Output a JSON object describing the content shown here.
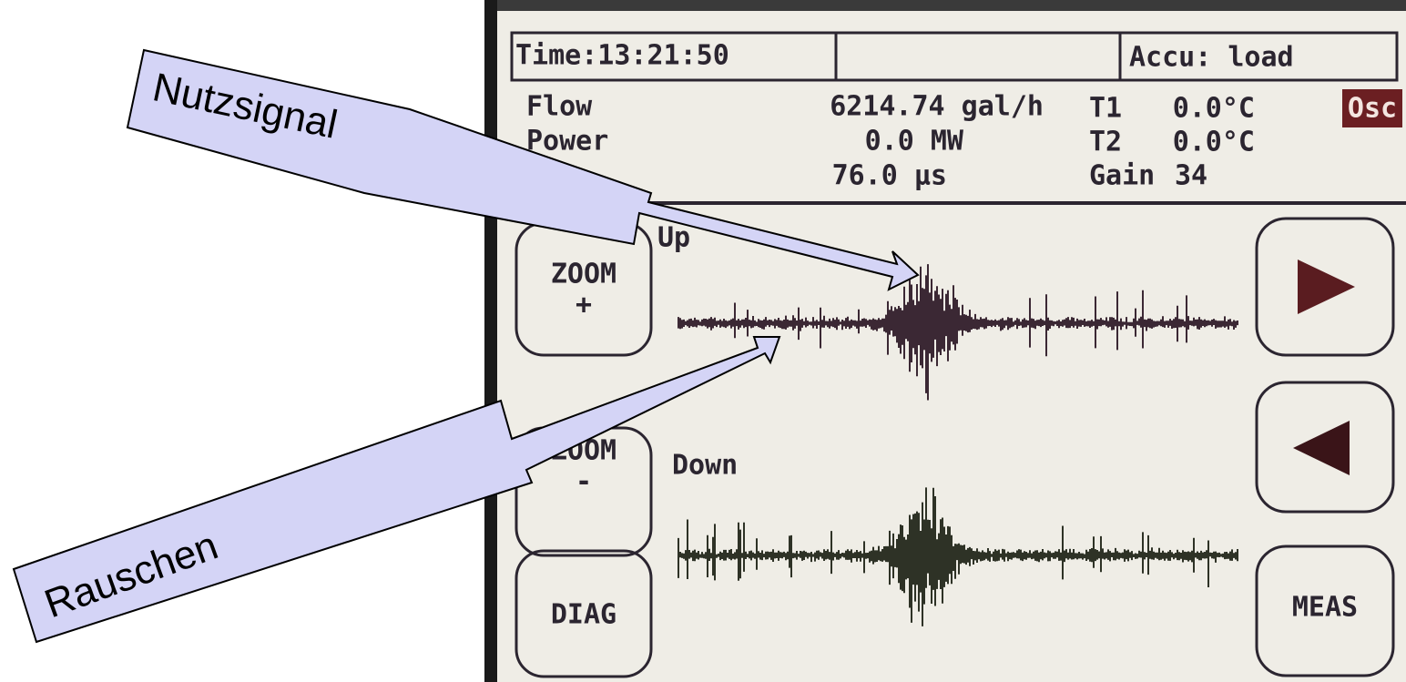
{
  "status_bar": {
    "time": "Time:13:21:50",
    "battery": "Accu: load"
  },
  "readings": [
    {
      "label": "Flow",
      "value": "6214.74 gal/h",
      "aux_label": "T1",
      "aux_value": "0.0°C"
    },
    {
      "label": "Power",
      "value": "0.0 MW",
      "aux_label": "T2",
      "aux_value": "0.0°C"
    },
    {
      "value": "76.0 µs",
      "aux_label": "Gain",
      "aux_value": "34"
    }
  ],
  "mode": "Osc",
  "channels": [
    "Up",
    "Down"
  ],
  "buttons": {
    "zoom_in": [
      "ZOOM",
      "+"
    ],
    "zoom_out": [
      "ZOOM",
      "-"
    ],
    "diag": "DIAG",
    "meas": "MEAS"
  },
  "annotations": [
    "Nutzsignal",
    "Rauschen"
  ]
}
